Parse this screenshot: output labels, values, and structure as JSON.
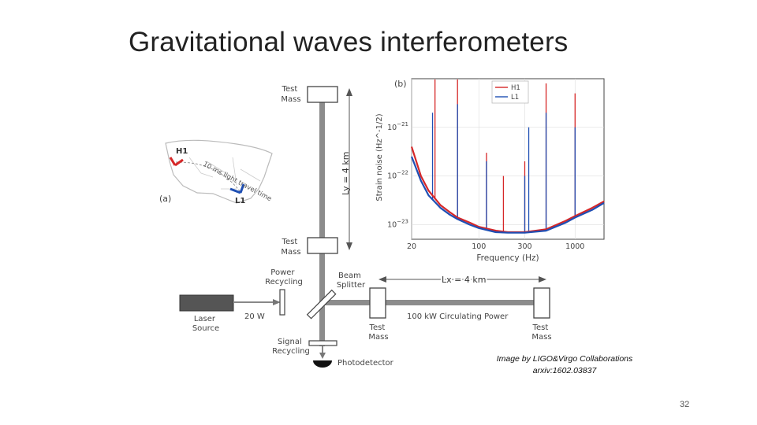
{
  "slide": {
    "title": "Gravitational waves interferometers",
    "credit_line1": "Image by LIGO&Virgo Collaborations",
    "credit_line2": "arxiv:1602.03837",
    "page_number": "32"
  },
  "diagram": {
    "test_mass_label_top": [
      "Test",
      "Mass"
    ],
    "test_mass_label_mid": [
      "Test",
      "Mass"
    ],
    "ly_label": "Ly = 4 km",
    "lx_label": "Lx = 4 km",
    "power_recycling": [
      "Power",
      "Recycling"
    ],
    "beam_splitter": [
      "Beam",
      "Splitter"
    ],
    "laser_source": [
      "Laser",
      "Source"
    ],
    "laser_power": "20 W",
    "test_mass_bottom_center": [
      "Test",
      "Mass"
    ],
    "test_mass_bottom_right": [
      "Test",
      "Mass"
    ],
    "circulating_power": "100 kW Circulating Power",
    "signal_recycling": [
      "Signal",
      "Recycling"
    ],
    "photodetector": "Photodetector"
  },
  "map_inset": {
    "panel_label": "(a)",
    "site_h1": "H1",
    "site_l1": "L1",
    "travel_text": "10 ms light travel time",
    "colors": {
      "h1": "#d62728",
      "l1": "#1f4fb4"
    }
  },
  "chart_data": {
    "type": "line",
    "panel_label": "(b)",
    "xlabel": "Frequency (Hz)",
    "ylabel": "Strain noise (Hz^-1/2)",
    "x_scale": "log",
    "y_scale": "log",
    "xlim": [
      20,
      2000
    ],
    "ylim": [
      5e-24,
      1e-20
    ],
    "x_ticks": [
      "20",
      "100",
      "300",
      "1000"
    ],
    "y_ticks": [
      "10^-21",
      "10^-22",
      "10^-23"
    ],
    "legend_position": "top-right",
    "series": [
      {
        "name": "H1",
        "color": "#d62728",
        "x": [
          20,
          25,
          30,
          40,
          50,
          60,
          80,
          100,
          150,
          200,
          300,
          500,
          800,
          1000,
          1500,
          2000
        ],
        "y": [
          4e-22,
          1e-22,
          5e-23,
          2.5e-23,
          1.8e-23,
          1.4e-23,
          1.1e-23,
          9e-24,
          7.5e-24,
          7e-24,
          7e-24,
          8e-24,
          1.2e-23,
          1.5e-23,
          2.2e-23,
          3e-23
        ]
      },
      {
        "name": "L1",
        "color": "#1f4fb4",
        "x": [
          20,
          25,
          30,
          40,
          50,
          60,
          80,
          100,
          150,
          200,
          300,
          500,
          800,
          1000,
          1500,
          2000
        ],
        "y": [
          2.5e-22,
          8e-23,
          4e-23,
          2.2e-23,
          1.6e-23,
          1.3e-23,
          1e-23,
          8.5e-24,
          7e-24,
          6.8e-24,
          6.8e-24,
          7.5e-24,
          1.1e-23,
          1.4e-23,
          2e-23,
          2.8e-23
        ]
      }
    ],
    "lines_hz": [
      {
        "series": "H1",
        "x": 35,
        "y": 1e-20
      },
      {
        "series": "H1",
        "x": 60,
        "y": 1e-20
      },
      {
        "series": "H1",
        "x": 120,
        "y": 3e-22
      },
      {
        "series": "H1",
        "x": 180,
        "y": 1e-22
      },
      {
        "series": "H1",
        "x": 300,
        "y": 2e-22
      },
      {
        "series": "H1",
        "x": 500,
        "y": 8e-21
      },
      {
        "series": "H1",
        "x": 1000,
        "y": 5e-21
      },
      {
        "series": "L1",
        "x": 33,
        "y": 2e-21
      },
      {
        "series": "L1",
        "x": 60,
        "y": 3e-21
      },
      {
        "series": "L1",
        "x": 120,
        "y": 2e-22
      },
      {
        "series": "L1",
        "x": 300,
        "y": 1e-22
      },
      {
        "series": "L1",
        "x": 330,
        "y": 1e-21
      },
      {
        "series": "L1",
        "x": 500,
        "y": 2e-21
      },
      {
        "series": "L1",
        "x": 1000,
        "y": 1e-21
      }
    ]
  }
}
